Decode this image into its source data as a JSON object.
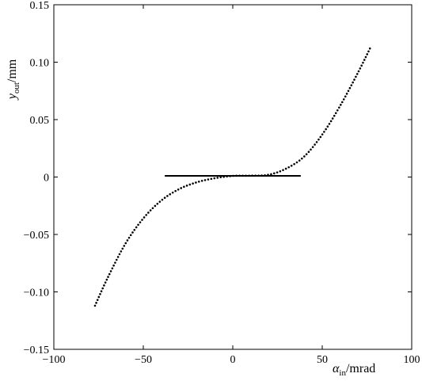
{
  "chart_data": {
    "type": "line",
    "title": "",
    "xlabel": {
      "symbol": "α",
      "subscript": "in",
      "unit": "/mrad"
    },
    "ylabel": {
      "symbol": "y",
      "subscript": "out",
      "unit": "/mm"
    },
    "xlim": [
      -100,
      100
    ],
    "ylim": [
      -0.15,
      0.15
    ],
    "x_ticks": [
      -100,
      -50,
      0,
      50,
      100
    ],
    "x_tick_labels": [
      "−100",
      "−50",
      "0",
      "50",
      "100"
    ],
    "y_ticks": [
      -0.15,
      -0.1,
      -0.05,
      0,
      0.05,
      0.1,
      0.15
    ],
    "y_tick_labels": [
      "−0.15",
      "−0.10",
      "−0.05",
      "0",
      "0.05",
      "0.10",
      "0.15"
    ],
    "grid": false,
    "legend": "none",
    "series": [
      {
        "style": "dotted",
        "color": "#000000",
        "x": [
          -77,
          -70,
          -60,
          -50,
          -40,
          -30,
          -20,
          -10,
          0,
          10,
          20,
          30,
          40,
          50,
          60,
          70,
          77
        ],
        "y": [
          -0.112,
          -0.088,
          -0.058,
          -0.036,
          -0.0205,
          -0.0105,
          -0.0045,
          -0.001,
          0.001,
          0.0012,
          0.002,
          0.0075,
          0.018,
          0.037,
          0.062,
          0.091,
          0.113
        ]
      },
      {
        "style": "solid",
        "color": "#000000",
        "x": [
          -38,
          38
        ],
        "y": [
          0.001,
          0.001
        ]
      }
    ]
  }
}
